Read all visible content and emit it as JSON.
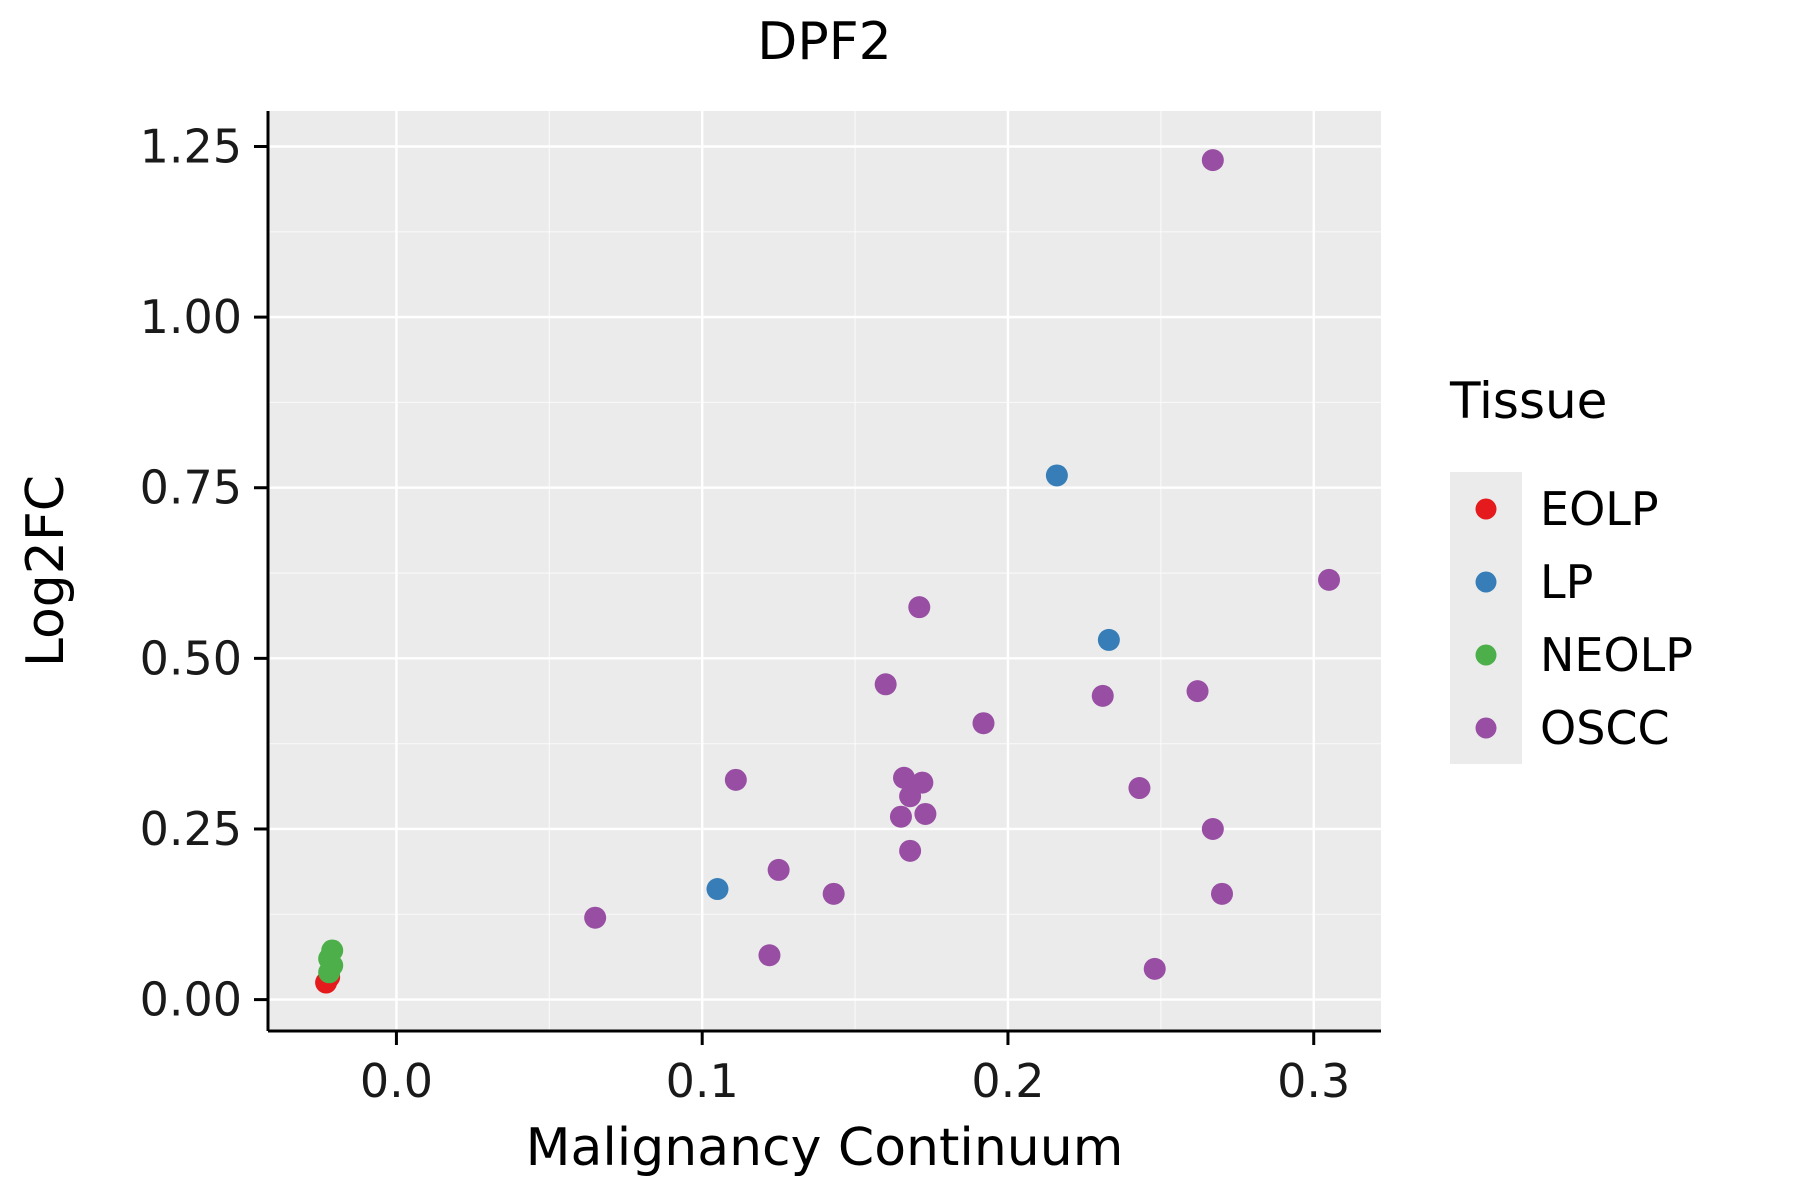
{
  "chart_data": {
    "type": "scatter",
    "title": "DPF2",
    "xlabel": "Malignancy Continuum",
    "ylabel": "Log2FC",
    "legend_title": "Tissue",
    "legend_position": "right",
    "grid": true,
    "panel_background": "#EBEBEB",
    "grid_color": "#FFFFFF",
    "axis_color": "#000000",
    "xlim": [
      -0.042,
      0.322
    ],
    "ylim": [
      -0.046,
      1.302
    ],
    "x_ticks": {
      "values": [
        0.0,
        0.1,
        0.2,
        0.3
      ],
      "labels": [
        "0.0",
        "0.1",
        "0.2",
        "0.3"
      ]
    },
    "y_ticks": {
      "values": [
        0.0,
        0.25,
        0.5,
        0.75,
        1.0,
        1.25
      ],
      "labels": [
        "0.00",
        "0.25",
        "0.50",
        "0.75",
        "1.00",
        "1.25"
      ]
    },
    "x_minor_ticks": [
      0.05,
      0.15,
      0.25
    ],
    "y_minor_ticks": [
      0.125,
      0.375,
      0.625,
      0.875,
      1.125
    ],
    "series": [
      {
        "name": "EOLP",
        "color": "#E41A1C",
        "points": [
          [
            -0.023,
            0.025
          ],
          [
            -0.022,
            0.033
          ]
        ]
      },
      {
        "name": "LP",
        "color": "#377EB8",
        "points": [
          [
            0.105,
            0.162
          ],
          [
            0.216,
            0.768
          ],
          [
            0.233,
            0.527
          ]
        ]
      },
      {
        "name": "NEOLP",
        "color": "#4DAF4A",
        "points": [
          [
            -0.021,
            0.072
          ],
          [
            -0.022,
            0.06
          ],
          [
            -0.021,
            0.05
          ],
          [
            -0.022,
            0.04
          ]
        ]
      },
      {
        "name": "OSCC",
        "color": "#984EA3",
        "points": [
          [
            0.065,
            0.12
          ],
          [
            0.111,
            0.322
          ],
          [
            0.122,
            0.065
          ],
          [
            0.125,
            0.19
          ],
          [
            0.143,
            0.155
          ],
          [
            0.16,
            0.462
          ],
          [
            0.165,
            0.268
          ],
          [
            0.166,
            0.325
          ],
          [
            0.168,
            0.298
          ],
          [
            0.168,
            0.218
          ],
          [
            0.171,
            0.575
          ],
          [
            0.172,
            0.318
          ],
          [
            0.173,
            0.272
          ],
          [
            0.192,
            0.405
          ],
          [
            0.231,
            0.445
          ],
          [
            0.243,
            0.31
          ],
          [
            0.248,
            0.045
          ],
          [
            0.262,
            0.452
          ],
          [
            0.267,
            1.23
          ],
          [
            0.267,
            0.25
          ],
          [
            0.27,
            0.155
          ],
          [
            0.305,
            0.615
          ]
        ]
      }
    ]
  }
}
